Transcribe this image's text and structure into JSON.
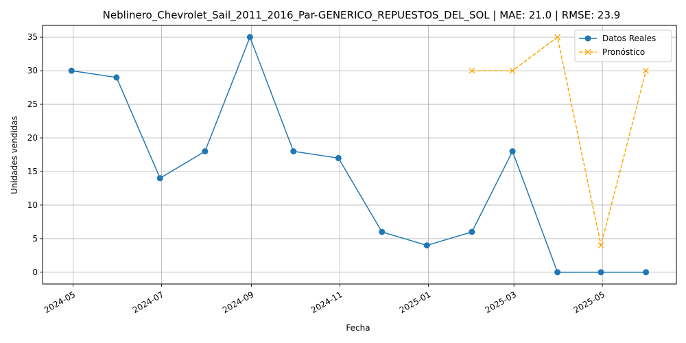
{
  "chart_data": {
    "type": "line",
    "title": "Neblinero_Chevrolet_Sail_2011_2016_Par-GENERICO_REPUESTOS_DEL_SOL | MAE: 21.0 | RMSE: 23.9",
    "xlabel": "Fecha",
    "ylabel": "Unidades vendidas",
    "xlim": [
      "2024-04-10",
      "2025-06-21"
    ],
    "ylim": [
      -1.75,
      36.75
    ],
    "x_ticks": [
      "2024-05",
      "2024-07",
      "2024-09",
      "2024-11",
      "2025-01",
      "2025-03",
      "2025-05"
    ],
    "y_ticks": [
      0,
      5,
      10,
      15,
      20,
      25,
      30,
      35
    ],
    "grid": true,
    "legend_position": "top-right",
    "series": [
      {
        "name": "Datos Reales",
        "color": "#1f77b4",
        "marker": "circle",
        "line_style": "solid",
        "x": [
          "2024-04-30",
          "2024-05-31",
          "2024-06-30",
          "2024-07-31",
          "2024-08-31",
          "2024-09-30",
          "2024-10-31",
          "2024-11-30",
          "2024-12-31",
          "2025-01-31",
          "2025-02-28",
          "2025-03-31",
          "2025-04-30",
          "2025-05-31"
        ],
        "values": [
          30,
          29,
          14,
          18,
          35,
          18,
          17,
          6,
          4,
          6,
          18,
          0,
          0,
          0
        ]
      },
      {
        "name": "Pronóstico",
        "color": "#ffa500",
        "marker": "x",
        "line_style": "dashed",
        "x": [
          "2025-01-31",
          "2025-02-28",
          "2025-03-31",
          "2025-04-30",
          "2025-05-31"
        ],
        "values": [
          30,
          30,
          35,
          4,
          30
        ]
      }
    ]
  }
}
